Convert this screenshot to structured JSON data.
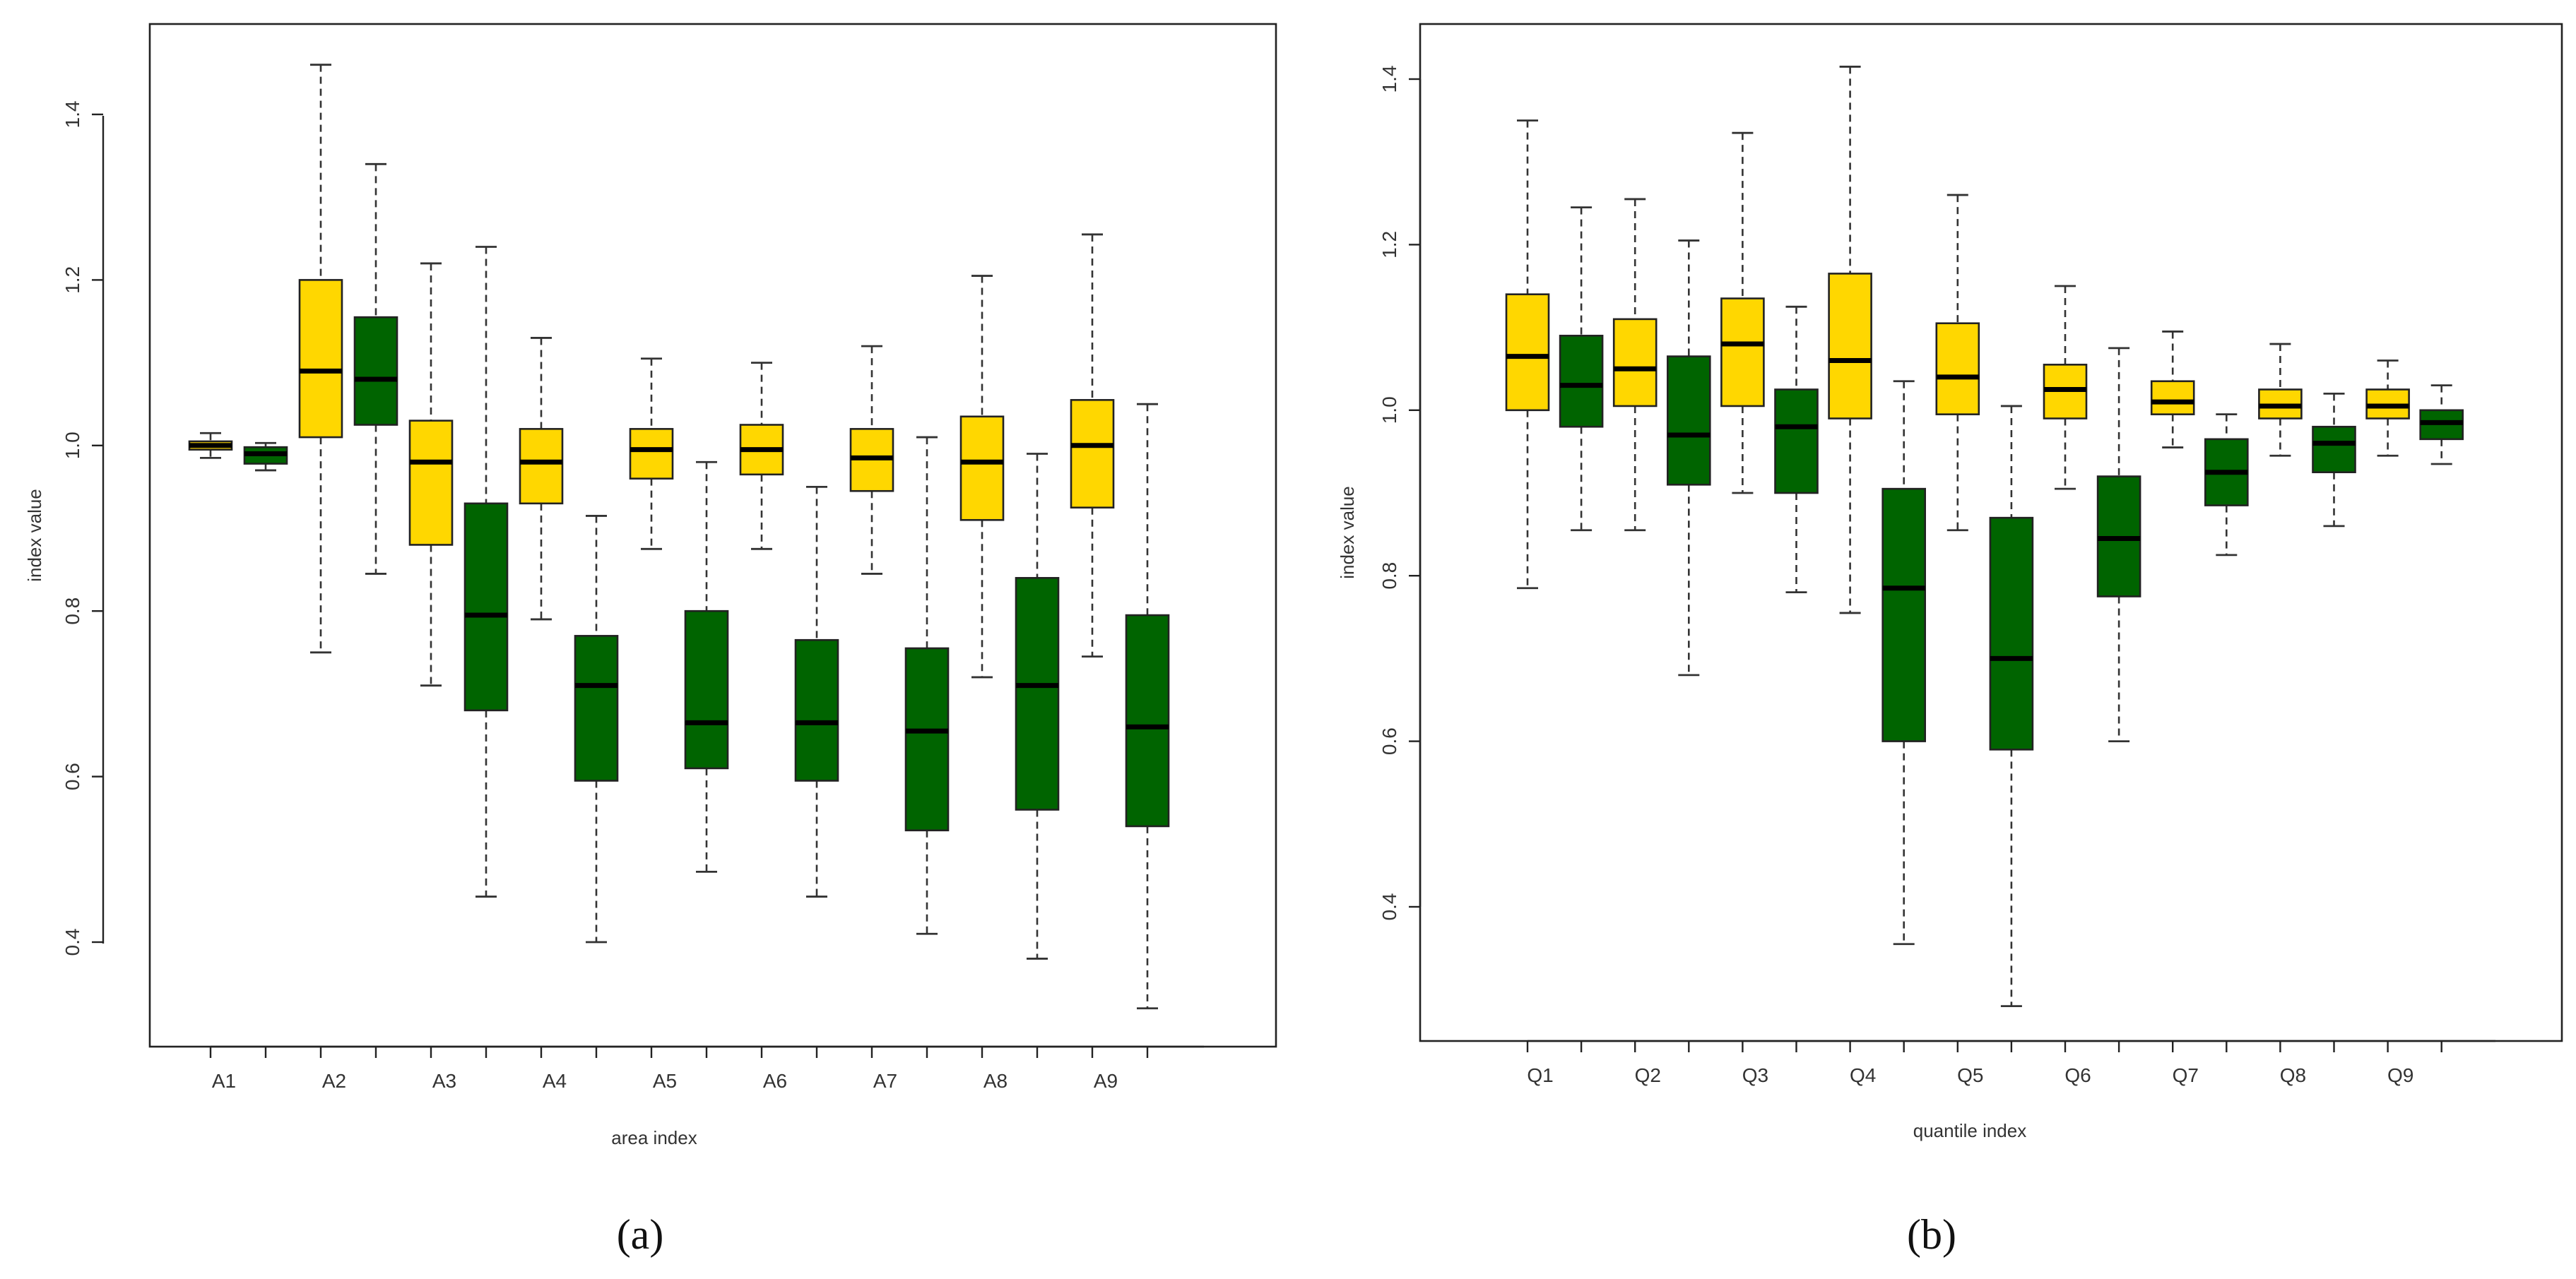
{
  "colors": {
    "yellow": "#FFD700",
    "green": "#006400"
  },
  "chart_data": [
    {
      "type": "box",
      "panel_label": "(a)",
      "xlabel": "area index",
      "ylabel": "index value",
      "ylim": [
        0.32,
        1.49
      ],
      "yticks": [
        0.4,
        0.6,
        0.8,
        1.0,
        1.2,
        1.4
      ],
      "ytick_labels": [
        "0.4",
        "0.6",
        "0.8",
        "1.0",
        "1.2",
        "1.4"
      ],
      "categories": [
        "A1",
        "A2",
        "A3",
        "A4",
        "A5",
        "A6",
        "A7",
        "A8",
        "A9"
      ],
      "boxes": [
        {
          "cat": 0,
          "color": "yellow",
          "min": 0.985,
          "q1": 0.995,
          "median": 1.0,
          "q3": 1.005,
          "max": 1.015
        },
        {
          "cat": 0,
          "color": "green",
          "min": 0.97,
          "q1": 0.978,
          "median": 0.99,
          "q3": 0.998,
          "max": 1.003
        },
        {
          "cat": 1,
          "color": "yellow",
          "min": 0.75,
          "q1": 1.01,
          "median": 1.09,
          "q3": 1.2,
          "max": 1.46
        },
        {
          "cat": 1,
          "color": "green",
          "min": 0.845,
          "q1": 1.025,
          "median": 1.08,
          "q3": 1.155,
          "max": 1.34
        },
        {
          "cat": 2,
          "color": "yellow",
          "min": 0.71,
          "q1": 0.88,
          "median": 0.98,
          "q3": 1.03,
          "max": 1.22
        },
        {
          "cat": 2,
          "color": "green",
          "min": 0.455,
          "q1": 0.68,
          "median": 0.795,
          "q3": 0.93,
          "max": 1.24
        },
        {
          "cat": 3,
          "color": "yellow",
          "min": 0.79,
          "q1": 0.93,
          "median": 0.98,
          "q3": 1.02,
          "max": 1.13
        },
        {
          "cat": 3,
          "color": "green",
          "min": 0.4,
          "q1": 0.595,
          "median": 0.71,
          "q3": 0.77,
          "max": 0.915
        },
        {
          "cat": 4,
          "color": "yellow",
          "min": 0.875,
          "q1": 0.96,
          "median": 0.995,
          "q3": 1.02,
          "max": 1.105
        },
        {
          "cat": 4,
          "color": "green",
          "min": 0.485,
          "q1": 0.61,
          "median": 0.665,
          "q3": 0.8,
          "max": 0.98
        },
        {
          "cat": 5,
          "color": "yellow",
          "min": 0.875,
          "q1": 0.965,
          "median": 0.995,
          "q3": 1.025,
          "max": 1.1
        },
        {
          "cat": 5,
          "color": "green",
          "min": 0.455,
          "q1": 0.595,
          "median": 0.665,
          "q3": 0.765,
          "max": 0.95
        },
        {
          "cat": 6,
          "color": "yellow",
          "min": 0.845,
          "q1": 0.945,
          "median": 0.985,
          "q3": 1.02,
          "max": 1.12
        },
        {
          "cat": 6,
          "color": "green",
          "min": 0.41,
          "q1": 0.535,
          "median": 0.655,
          "q3": 0.755,
          "max": 1.01
        },
        {
          "cat": 7,
          "color": "yellow",
          "min": 0.72,
          "q1": 0.91,
          "median": 0.98,
          "q3": 1.035,
          "max": 1.205
        },
        {
          "cat": 7,
          "color": "green",
          "min": 0.38,
          "q1": 0.56,
          "median": 0.71,
          "q3": 0.84,
          "max": 0.99
        },
        {
          "cat": 8,
          "color": "yellow",
          "min": 0.745,
          "q1": 0.925,
          "median": 1.0,
          "q3": 1.055,
          "max": 1.255
        },
        {
          "cat": 8,
          "color": "green",
          "min": 0.32,
          "q1": 0.54,
          "median": 0.66,
          "q3": 0.795,
          "max": 1.05
        }
      ]
    },
    {
      "type": "box",
      "panel_label": "(b)",
      "xlabel": "quantile index",
      "ylabel": "index value",
      "ylim": [
        0.27,
        1.45
      ],
      "yticks": [
        0.4,
        0.6,
        0.8,
        1.0,
        1.2,
        1.4
      ],
      "ytick_labels": [
        "0.4",
        "0.6",
        "0.8",
        "1.0",
        "1.2",
        "1.4"
      ],
      "categories": [
        "Q1",
        "Q2",
        "Q3",
        "Q4",
        "Q5",
        "Q6",
        "Q7",
        "Q8",
        "Q9"
      ],
      "boxes": [
        {
          "cat": 0,
          "color": "yellow",
          "min": 0.785,
          "q1": 1.0,
          "median": 1.065,
          "q3": 1.14,
          "max": 1.35
        },
        {
          "cat": 0,
          "color": "green",
          "min": 0.855,
          "q1": 0.98,
          "median": 1.03,
          "q3": 1.09,
          "max": 1.245
        },
        {
          "cat": 1,
          "color": "yellow",
          "min": 0.855,
          "q1": 1.005,
          "median": 1.05,
          "q3": 1.11,
          "max": 1.255
        },
        {
          "cat": 1,
          "color": "green",
          "min": 0.68,
          "q1": 0.91,
          "median": 0.97,
          "q3": 1.065,
          "max": 1.205
        },
        {
          "cat": 2,
          "color": "yellow",
          "min": 0.9,
          "q1": 1.005,
          "median": 1.08,
          "q3": 1.135,
          "max": 1.335
        },
        {
          "cat": 2,
          "color": "green",
          "min": 0.78,
          "q1": 0.9,
          "median": 0.98,
          "q3": 1.025,
          "max": 1.125
        },
        {
          "cat": 3,
          "color": "yellow",
          "min": 0.755,
          "q1": 0.99,
          "median": 1.06,
          "q3": 1.165,
          "max": 1.415
        },
        {
          "cat": 3,
          "color": "green",
          "min": 0.355,
          "q1": 0.6,
          "median": 0.785,
          "q3": 0.905,
          "max": 1.035
        },
        {
          "cat": 4,
          "color": "yellow",
          "min": 0.855,
          "q1": 0.995,
          "median": 1.04,
          "q3": 1.105,
          "max": 1.26
        },
        {
          "cat": 4,
          "color": "green",
          "min": 0.28,
          "q1": 0.59,
          "median": 0.7,
          "q3": 0.87,
          "max": 1.005
        },
        {
          "cat": 5,
          "color": "yellow",
          "min": 0.905,
          "q1": 0.99,
          "median": 1.025,
          "q3": 1.055,
          "max": 1.15
        },
        {
          "cat": 5,
          "color": "green",
          "min": 0.6,
          "q1": 0.775,
          "median": 0.845,
          "q3": 0.92,
          "max": 1.075
        },
        {
          "cat": 6,
          "color": "yellow",
          "min": 0.955,
          "q1": 0.995,
          "median": 1.01,
          "q3": 1.035,
          "max": 1.095
        },
        {
          "cat": 6,
          "color": "green",
          "min": 0.825,
          "q1": 0.885,
          "median": 0.925,
          "q3": 0.965,
          "max": 0.995
        },
        {
          "cat": 7,
          "color": "yellow",
          "min": 0.945,
          "q1": 0.99,
          "median": 1.005,
          "q3": 1.025,
          "max": 1.08
        },
        {
          "cat": 7,
          "color": "green",
          "min": 0.86,
          "q1": 0.925,
          "median": 0.96,
          "q3": 0.98,
          "max": 1.02
        },
        {
          "cat": 8,
          "color": "yellow",
          "min": 0.945,
          "q1": 0.99,
          "median": 1.005,
          "q3": 1.025,
          "max": 1.06
        },
        {
          "cat": 8,
          "color": "green",
          "min": 0.935,
          "q1": 0.965,
          "median": 0.985,
          "q3": 1.0,
          "max": 1.03
        }
      ]
    }
  ]
}
